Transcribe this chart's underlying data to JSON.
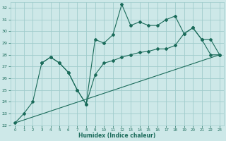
{
  "bg_color": "#cde8e8",
  "grid_color": "#a0cccc",
  "line_color": "#1a6b5a",
  "xlabel": "Humidex (Indice chaleur)",
  "xlim": [
    0,
    23
  ],
  "ylim": [
    22,
    32.5
  ],
  "yticks": [
    22,
    23,
    24,
    25,
    26,
    27,
    28,
    29,
    30,
    31,
    32
  ],
  "xticks": [
    0,
    1,
    2,
    3,
    4,
    5,
    6,
    7,
    8,
    9,
    10,
    11,
    12,
    13,
    14,
    15,
    16,
    17,
    18,
    19,
    20,
    21,
    22,
    23
  ],
  "line1_x": [
    0,
    1,
    2,
    3,
    4,
    5,
    6,
    7,
    8,
    9,
    10,
    11,
    12,
    13,
    14,
    15,
    16,
    17,
    18,
    19,
    20,
    21,
    22,
    23
  ],
  "line1_y": [
    22.2,
    23.0,
    24.0,
    27.3,
    27.8,
    27.3,
    26.5,
    25.0,
    23.8,
    29.3,
    29.0,
    29.7,
    32.3,
    30.5,
    30.8,
    30.5,
    30.5,
    31.0,
    31.3,
    29.8,
    30.3,
    29.3,
    28.0,
    28.0
  ],
  "line2_x": [
    0,
    23
  ],
  "line2_y": [
    22.2,
    28.0
  ],
  "line3_x": [
    3,
    4,
    5,
    6,
    7,
    8,
    9,
    10,
    11,
    12,
    13,
    14,
    15,
    16,
    17,
    18,
    19,
    20,
    21,
    22,
    23
  ],
  "line3_y": [
    27.3,
    27.8,
    27.3,
    26.5,
    25.0,
    23.8,
    26.3,
    27.3,
    27.5,
    27.8,
    28.0,
    28.2,
    28.3,
    28.5,
    28.5,
    28.8,
    29.8,
    30.3,
    29.3,
    29.3,
    28.0
  ]
}
